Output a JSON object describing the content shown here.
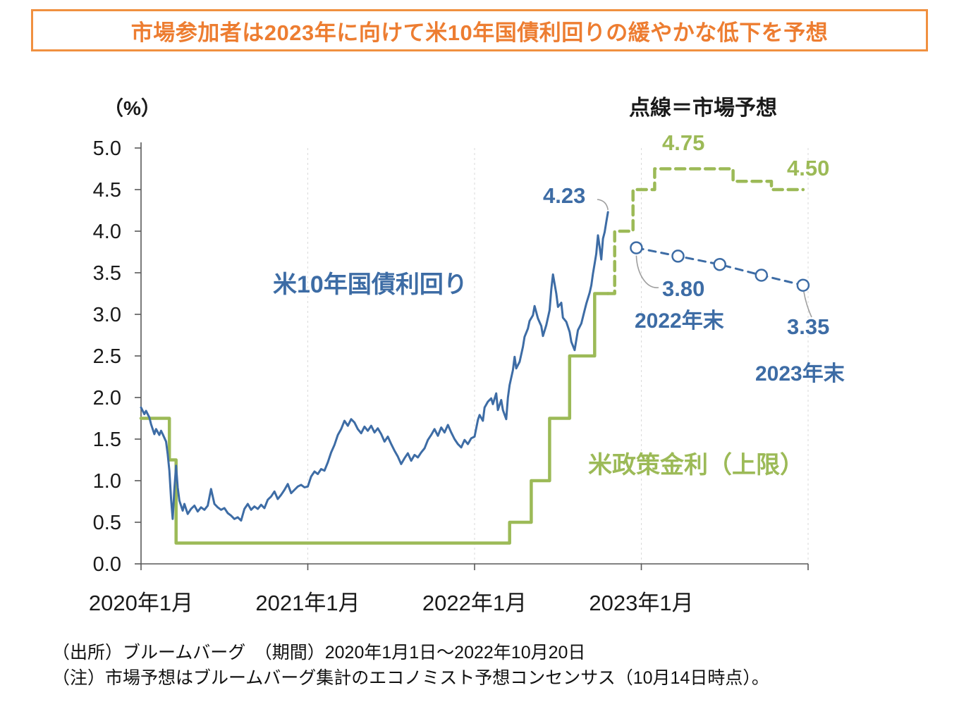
{
  "title": "市場参加者は2023年に向けて米10年国債利回りの緩やかな低下を予想",
  "colors": {
    "blue": "#3d6ca5",
    "green": "#9cba57",
    "orange": "#ed7d31",
    "axis": "#595959",
    "grid": "#dadada",
    "leader": "#9e9e9e"
  },
  "y_axis": {
    "unit_label": "（%）",
    "ticks": [
      {
        "label": "5.0",
        "value": 5.0
      },
      {
        "label": "4.5",
        "value": 4.5
      },
      {
        "label": "4.0",
        "value": 4.0
      },
      {
        "label": "3.5",
        "value": 3.5
      },
      {
        "label": "3.0",
        "value": 3.0
      },
      {
        "label": "2.5",
        "value": 2.5
      },
      {
        "label": "2.0",
        "value": 2.0
      },
      {
        "label": "1.5",
        "value": 1.5
      },
      {
        "label": "1.0",
        "value": 1.0
      },
      {
        "label": "0.5",
        "value": 0.5
      },
      {
        "label": "0.0",
        "value": 0.0
      }
    ]
  },
  "x_axis": {
    "ticks": [
      {
        "label": "2020年1月",
        "year": 2020
      },
      {
        "label": "2021年1月",
        "year": 2021
      },
      {
        "label": "2022年1月",
        "year": 2022
      },
      {
        "label": "2023年1月",
        "year": 2023
      }
    ]
  },
  "annotations": {
    "legend_note": "点線＝市場予想",
    "blue_series_label": "米10年国債利回り",
    "green_series_label": "米政策金利（上限）",
    "peak_value": "4.23",
    "green_peak_value": "4.75",
    "green_end_value": "4.50",
    "end2022_value": "3.80",
    "end2022_label": "2022年末",
    "end2023_value": "3.35",
    "end2023_label": "2023年末"
  },
  "footer": {
    "source_line": "（出所）ブルームバーグ　（期間）2020年1月1日～2022年10月20日",
    "note_line": "（注）市場予想はブルームバーグ集計のエコノミスト予想コンセンサス（10月14日時点）。"
  },
  "chart_data": {
    "type": "line",
    "x_unit": "decimal_year",
    "xlim": [
      2020.0,
      2024.0
    ],
    "ylim": [
      0,
      5
    ],
    "series": [
      {
        "name": "米政策金利（上限）",
        "color": "green",
        "style": "solid",
        "step": true,
        "markers": false,
        "points": [
          [
            2020.0,
            1.75
          ],
          [
            2020.17,
            1.25
          ],
          [
            2020.21,
            0.25
          ],
          [
            2022.21,
            0.5
          ],
          [
            2022.34,
            1.0
          ],
          [
            2022.45,
            1.75
          ],
          [
            2022.57,
            2.5
          ],
          [
            2022.72,
            3.25
          ],
          [
            2022.8,
            3.25
          ]
        ]
      },
      {
        "name": "米政策金利予想（市場予想）",
        "color": "green",
        "style": "dashed",
        "step": true,
        "markers": false,
        "points": [
          [
            2022.8,
            3.25
          ],
          [
            2022.84,
            4.0
          ],
          [
            2022.95,
            4.5
          ],
          [
            2023.08,
            4.75
          ],
          [
            2023.55,
            4.6
          ],
          [
            2023.78,
            4.5
          ],
          [
            2023.97,
            4.5
          ]
        ]
      },
      {
        "name": "米10年国債利回り",
        "color": "blue",
        "style": "solid",
        "step": false,
        "markers": false,
        "points": [
          [
            2020.0,
            1.88
          ],
          [
            2020.02,
            1.8
          ],
          [
            2020.03,
            1.84
          ],
          [
            2020.05,
            1.76
          ],
          [
            2020.06,
            1.68
          ],
          [
            2020.08,
            1.56
          ],
          [
            2020.09,
            1.62
          ],
          [
            2020.11,
            1.55
          ],
          [
            2020.12,
            1.6
          ],
          [
            2020.13,
            1.56
          ],
          [
            2020.15,
            1.47
          ],
          [
            2020.16,
            1.32
          ],
          [
            2020.17,
            1.12
          ],
          [
            2020.18,
            0.78
          ],
          [
            2020.19,
            0.54
          ],
          [
            2020.2,
            0.9
          ],
          [
            2020.21,
            1.18
          ],
          [
            2020.22,
            0.92
          ],
          [
            2020.23,
            0.76
          ],
          [
            2020.25,
            0.64
          ],
          [
            2020.26,
            0.72
          ],
          [
            2020.28,
            0.6
          ],
          [
            2020.3,
            0.66
          ],
          [
            2020.32,
            0.7
          ],
          [
            2020.34,
            0.63
          ],
          [
            2020.36,
            0.68
          ],
          [
            2020.38,
            0.65
          ],
          [
            2020.4,
            0.7
          ],
          [
            2020.42,
            0.9
          ],
          [
            2020.44,
            0.72
          ],
          [
            2020.46,
            0.68
          ],
          [
            2020.48,
            0.65
          ],
          [
            2020.5,
            0.67
          ],
          [
            2020.52,
            0.61
          ],
          [
            2020.54,
            0.58
          ],
          [
            2020.56,
            0.54
          ],
          [
            2020.58,
            0.56
          ],
          [
            2020.6,
            0.52
          ],
          [
            2020.62,
            0.66
          ],
          [
            2020.64,
            0.72
          ],
          [
            2020.66,
            0.65
          ],
          [
            2020.68,
            0.69
          ],
          [
            2020.7,
            0.66
          ],
          [
            2020.72,
            0.71
          ],
          [
            2020.74,
            0.67
          ],
          [
            2020.76,
            0.77
          ],
          [
            2020.78,
            0.81
          ],
          [
            2020.8,
            0.87
          ],
          [
            2020.82,
            0.78
          ],
          [
            2020.84,
            0.83
          ],
          [
            2020.86,
            0.89
          ],
          [
            2020.88,
            0.96
          ],
          [
            2020.9,
            0.85
          ],
          [
            2020.92,
            0.89
          ],
          [
            2020.94,
            0.93
          ],
          [
            2020.96,
            0.95
          ],
          [
            2020.98,
            0.92
          ],
          [
            2021.0,
            0.93
          ],
          [
            2021.02,
            1.05
          ],
          [
            2021.04,
            1.11
          ],
          [
            2021.06,
            1.08
          ],
          [
            2021.08,
            1.14
          ],
          [
            2021.1,
            1.12
          ],
          [
            2021.12,
            1.22
          ],
          [
            2021.14,
            1.34
          ],
          [
            2021.16,
            1.43
          ],
          [
            2021.18,
            1.55
          ],
          [
            2021.2,
            1.62
          ],
          [
            2021.22,
            1.72
          ],
          [
            2021.24,
            1.66
          ],
          [
            2021.26,
            1.74
          ],
          [
            2021.28,
            1.7
          ],
          [
            2021.3,
            1.62
          ],
          [
            2021.32,
            1.57
          ],
          [
            2021.34,
            1.65
          ],
          [
            2021.36,
            1.6
          ],
          [
            2021.38,
            1.66
          ],
          [
            2021.4,
            1.58
          ],
          [
            2021.42,
            1.63
          ],
          [
            2021.44,
            1.56
          ],
          [
            2021.46,
            1.47
          ],
          [
            2021.48,
            1.53
          ],
          [
            2021.5,
            1.44
          ],
          [
            2021.52,
            1.36
          ],
          [
            2021.54,
            1.29
          ],
          [
            2021.56,
            1.2
          ],
          [
            2021.58,
            1.27
          ],
          [
            2021.6,
            1.33
          ],
          [
            2021.62,
            1.24
          ],
          [
            2021.64,
            1.31
          ],
          [
            2021.66,
            1.28
          ],
          [
            2021.68,
            1.34
          ],
          [
            2021.7,
            1.39
          ],
          [
            2021.72,
            1.49
          ],
          [
            2021.74,
            1.55
          ],
          [
            2021.76,
            1.62
          ],
          [
            2021.78,
            1.54
          ],
          [
            2021.8,
            1.64
          ],
          [
            2021.82,
            1.58
          ],
          [
            2021.84,
            1.67
          ],
          [
            2021.86,
            1.58
          ],
          [
            2021.88,
            1.5
          ],
          [
            2021.9,
            1.44
          ],
          [
            2021.92,
            1.4
          ],
          [
            2021.94,
            1.49
          ],
          [
            2021.96,
            1.44
          ],
          [
            2021.98,
            1.51
          ],
          [
            2022.0,
            1.53
          ],
          [
            2022.02,
            1.73
          ],
          [
            2022.03,
            1.79
          ],
          [
            2022.05,
            1.72
          ],
          [
            2022.06,
            1.88
          ],
          [
            2022.08,
            1.95
          ],
          [
            2022.1,
            1.99
          ],
          [
            2022.11,
            1.92
          ],
          [
            2022.13,
            2.05
          ],
          [
            2022.14,
            1.85
          ],
          [
            2022.16,
            1.97
          ],
          [
            2022.17,
            1.85
          ],
          [
            2022.19,
            1.74
          ],
          [
            2022.2,
            2.0
          ],
          [
            2022.21,
            2.15
          ],
          [
            2022.23,
            2.33
          ],
          [
            2022.24,
            2.49
          ],
          [
            2022.25,
            2.35
          ],
          [
            2022.27,
            2.43
          ],
          [
            2022.29,
            2.61
          ],
          [
            2022.3,
            2.73
          ],
          [
            2022.32,
            2.83
          ],
          [
            2022.33,
            2.92
          ],
          [
            2022.35,
            2.99
          ],
          [
            2022.36,
            3.1
          ],
          [
            2022.38,
            2.95
          ],
          [
            2022.4,
            2.86
          ],
          [
            2022.41,
            2.74
          ],
          [
            2022.43,
            2.87
          ],
          [
            2022.45,
            3.05
          ],
          [
            2022.46,
            3.3
          ],
          [
            2022.47,
            3.48
          ],
          [
            2022.49,
            3.25
          ],
          [
            2022.5,
            3.09
          ],
          [
            2022.52,
            3.14
          ],
          [
            2022.53,
            2.96
          ],
          [
            2022.55,
            2.91
          ],
          [
            2022.57,
            2.79
          ],
          [
            2022.58,
            2.67
          ],
          [
            2022.6,
            2.57
          ],
          [
            2022.62,
            2.81
          ],
          [
            2022.64,
            2.89
          ],
          [
            2022.66,
            3.05
          ],
          [
            2022.67,
            3.13
          ],
          [
            2022.69,
            3.26
          ],
          [
            2022.7,
            3.35
          ],
          [
            2022.71,
            3.49
          ],
          [
            2022.72,
            3.61
          ],
          [
            2022.73,
            3.73
          ],
          [
            2022.74,
            3.95
          ],
          [
            2022.75,
            3.81
          ],
          [
            2022.76,
            3.66
          ],
          [
            2022.77,
            3.91
          ],
          [
            2022.78,
            3.99
          ],
          [
            2022.79,
            4.11
          ],
          [
            2022.8,
            4.23
          ]
        ]
      },
      {
        "name": "米10年国債利回り予想（市場予想）",
        "color": "blue",
        "style": "dashed",
        "step": false,
        "markers": true,
        "points": [
          [
            2022.97,
            3.8
          ],
          [
            2023.22,
            3.7
          ],
          [
            2023.47,
            3.6
          ],
          [
            2023.72,
            3.47
          ],
          [
            2023.97,
            3.35
          ]
        ]
      }
    ]
  }
}
